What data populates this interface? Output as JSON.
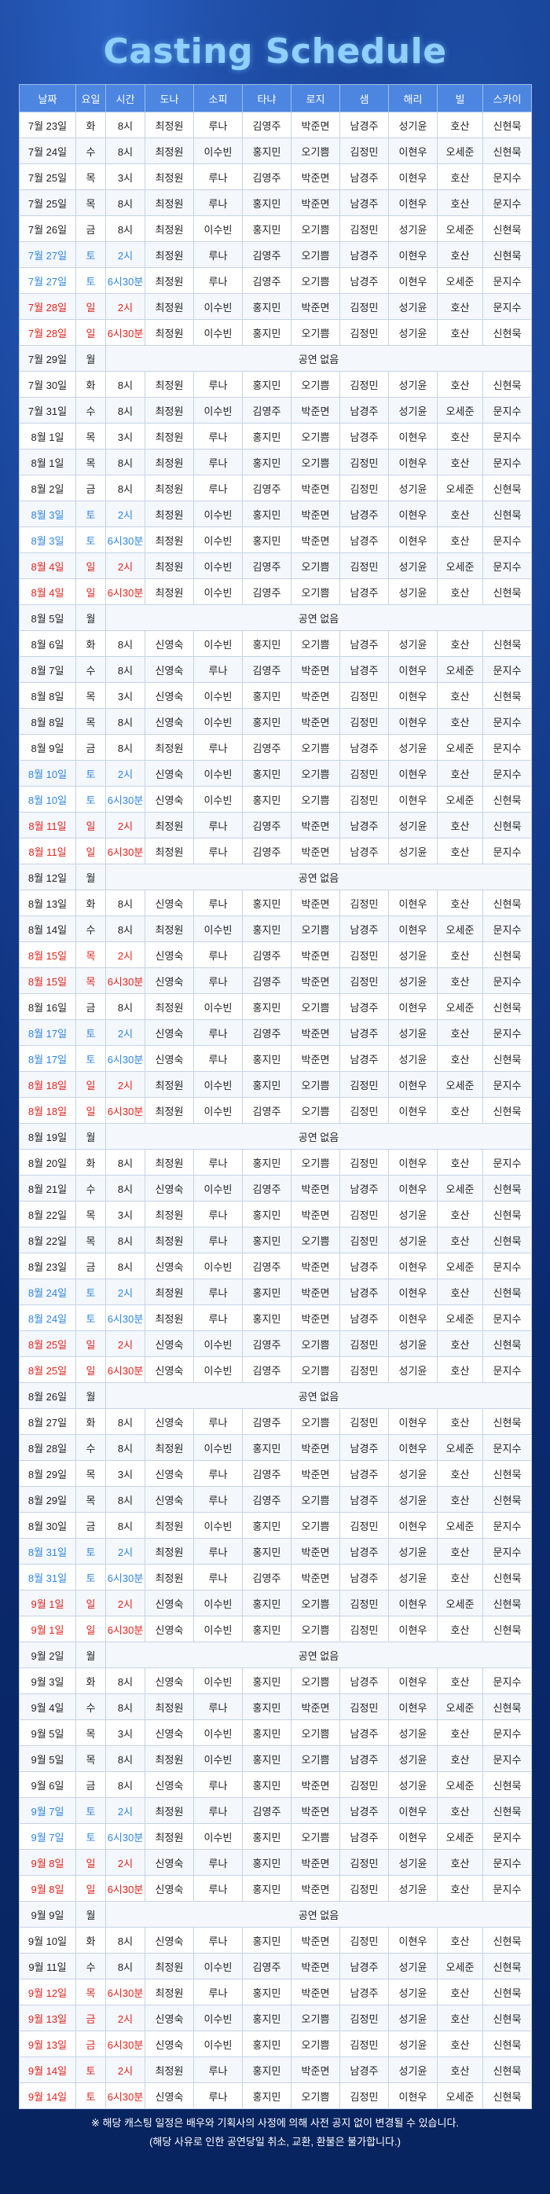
{
  "title": "Casting Schedule",
  "headers": [
    "날짜",
    "요일",
    "시간",
    "도나",
    "소피",
    "타냐",
    "로지",
    "샘",
    "해리",
    "빌",
    "스카이"
  ],
  "rows": [
    [
      "7월 23일",
      "화",
      "8시",
      "최정원",
      "루나",
      "김영주",
      "박준면",
      "남경주",
      "성기윤",
      "호산",
      "신현묵"
    ],
    [
      "7월 24일",
      "수",
      "8시",
      "최정원",
      "이수빈",
      "홍지민",
      "오기쁨",
      "김정민",
      "이현우",
      "오세준",
      "신현묵"
    ],
    [
      "7월 25일",
      "목",
      "3시",
      "최정원",
      "루나",
      "김영주",
      "박준면",
      "남경주",
      "이현우",
      "호산",
      "문지수"
    ],
    [
      "7월 25일",
      "목",
      "8시",
      "최정원",
      "루나",
      "홍지민",
      "박준면",
      "남경주",
      "이현우",
      "호산",
      "문지수"
    ],
    [
      "7월 26일",
      "금",
      "8시",
      "최정원",
      "이수빈",
      "홍지민",
      "오기쁨",
      "김정민",
      "성기윤",
      "오세준",
      "신현묵"
    ],
    [
      "7월 27일",
      "토",
      "2시",
      "최정원",
      "루나",
      "김영주",
      "오기쁨",
      "남경주",
      "이현우",
      "호산",
      "신현묵"
    ],
    [
      "7월 27일",
      "토",
      "6시30분",
      "최정원",
      "루나",
      "김영주",
      "오기쁨",
      "남경주",
      "이현우",
      "오세준",
      "문지수"
    ],
    [
      "7월 28일",
      "일",
      "2시",
      "최정원",
      "이수빈",
      "홍지민",
      "박준면",
      "김정민",
      "성기윤",
      "호산",
      "문지수"
    ],
    [
      "7월 28일",
      "일",
      "6시30분",
      "최정원",
      "이수빈",
      "홍지민",
      "오기쁨",
      "김정민",
      "성기윤",
      "호산",
      "신현묵"
    ],
    [
      "7월 29일",
      "월",
      "공연 없음"
    ],
    [
      "7월 30일",
      "화",
      "8시",
      "최정원",
      "루나",
      "홍지민",
      "오기쁨",
      "김정민",
      "성기윤",
      "호산",
      "신현묵"
    ],
    [
      "7월 31일",
      "수",
      "8시",
      "최정원",
      "이수빈",
      "김영주",
      "박준면",
      "남경주",
      "성기윤",
      "오세준",
      "문지수"
    ],
    [
      "8월 1일",
      "목",
      "3시",
      "최정원",
      "루나",
      "홍지민",
      "오기쁨",
      "남경주",
      "이현우",
      "호산",
      "문지수"
    ],
    [
      "8월 1일",
      "목",
      "8시",
      "최정원",
      "루나",
      "홍지민",
      "오기쁨",
      "김정민",
      "이현우",
      "호산",
      "문지수"
    ],
    [
      "8월 2일",
      "금",
      "8시",
      "최정원",
      "루나",
      "김영주",
      "박준면",
      "김정민",
      "성기윤",
      "오세준",
      "신현묵"
    ],
    [
      "8월 3일",
      "토",
      "2시",
      "최정원",
      "이수빈",
      "홍지민",
      "박준면",
      "남경주",
      "이현우",
      "호산",
      "신현묵"
    ],
    [
      "8월 3일",
      "토",
      "6시30분",
      "최정원",
      "이수빈",
      "홍지민",
      "박준면",
      "남경주",
      "이현우",
      "호산",
      "문지수"
    ],
    [
      "8월 4일",
      "일",
      "2시",
      "최정원",
      "이수빈",
      "김영주",
      "오기쁨",
      "김정민",
      "성기윤",
      "오세준",
      "문지수"
    ],
    [
      "8월 4일",
      "일",
      "6시30분",
      "최정원",
      "이수빈",
      "김영주",
      "오기쁨",
      "남경주",
      "성기윤",
      "호산",
      "신현묵"
    ],
    [
      "8월 5일",
      "월",
      "공연 없음"
    ],
    [
      "8월 6일",
      "화",
      "8시",
      "신영숙",
      "이수빈",
      "홍지민",
      "오기쁨",
      "남경주",
      "성기윤",
      "호산",
      "신현묵"
    ],
    [
      "8월 7일",
      "수",
      "8시",
      "신영숙",
      "루나",
      "김영주",
      "박준면",
      "남경주",
      "이현우",
      "오세준",
      "문지수"
    ],
    [
      "8월 8일",
      "목",
      "3시",
      "신영숙",
      "이수빈",
      "홍지민",
      "박준면",
      "김정민",
      "이현우",
      "호산",
      "신현묵"
    ],
    [
      "8월 8일",
      "목",
      "8시",
      "신영숙",
      "이수빈",
      "홍지민",
      "박준면",
      "김정민",
      "이현우",
      "호산",
      "문지수"
    ],
    [
      "8월 9일",
      "금",
      "8시",
      "최정원",
      "루나",
      "김영주",
      "오기쁨",
      "남경주",
      "성기윤",
      "오세준",
      "문지수"
    ],
    [
      "8월 10일",
      "토",
      "2시",
      "신영숙",
      "이수빈",
      "홍지민",
      "오기쁨",
      "김정민",
      "이현우",
      "호산",
      "문지수"
    ],
    [
      "8월 10일",
      "토",
      "6시30분",
      "신영숙",
      "이수빈",
      "홍지민",
      "오기쁨",
      "김정민",
      "이현우",
      "오세준",
      "신현묵"
    ],
    [
      "8월 11일",
      "일",
      "2시",
      "최정원",
      "루나",
      "김영주",
      "박준면",
      "남경주",
      "성기윤",
      "호산",
      "신현묵"
    ],
    [
      "8월 11일",
      "일",
      "6시30분",
      "최정원",
      "루나",
      "김영주",
      "박준면",
      "남경주",
      "성기윤",
      "호산",
      "문지수"
    ],
    [
      "8월 12일",
      "월",
      "공연 없음"
    ],
    [
      "8월 13일",
      "화",
      "8시",
      "신영숙",
      "루나",
      "홍지민",
      "박준면",
      "김정민",
      "이현우",
      "호산",
      "신현묵"
    ],
    [
      "8월 14일",
      "수",
      "8시",
      "최정원",
      "이수빈",
      "홍지민",
      "오기쁨",
      "남경주",
      "이현우",
      "오세준",
      "문지수"
    ],
    [
      "8월 15일",
      "목",
      "2시",
      "신영숙",
      "루나",
      "김영주",
      "박준면",
      "김정민",
      "성기윤",
      "호산",
      "신현묵"
    ],
    [
      "8월 15일",
      "목",
      "6시30분",
      "신영숙",
      "루나",
      "김영주",
      "박준면",
      "김정민",
      "성기윤",
      "호산",
      "문지수"
    ],
    [
      "8월 16일",
      "금",
      "8시",
      "최정원",
      "이수빈",
      "홍지민",
      "오기쁨",
      "남경주",
      "이현우",
      "오세준",
      "신현묵"
    ],
    [
      "8월 17일",
      "토",
      "2시",
      "신영숙",
      "루나",
      "김영주",
      "박준면",
      "남경주",
      "성기윤",
      "호산",
      "문지수"
    ],
    [
      "8월 17일",
      "토",
      "6시30분",
      "신영숙",
      "루나",
      "홍지민",
      "박준면",
      "남경주",
      "성기윤",
      "호산",
      "신현묵"
    ],
    [
      "8월 18일",
      "일",
      "2시",
      "최정원",
      "이수빈",
      "홍지민",
      "오기쁨",
      "김정민",
      "이현우",
      "오세준",
      "문지수"
    ],
    [
      "8월 18일",
      "일",
      "6시30분",
      "최정원",
      "이수빈",
      "김영주",
      "오기쁨",
      "김정민",
      "이현우",
      "호산",
      "신현묵"
    ],
    [
      "8월 19일",
      "월",
      "공연 없음"
    ],
    [
      "8월 20일",
      "화",
      "8시",
      "최정원",
      "루나",
      "홍지민",
      "오기쁨",
      "김정민",
      "이현우",
      "호산",
      "문지수"
    ],
    [
      "8월 21일",
      "수",
      "8시",
      "신영숙",
      "이수빈",
      "김영주",
      "박준면",
      "남경주",
      "이현우",
      "오세준",
      "신현묵"
    ],
    [
      "8월 22일",
      "목",
      "3시",
      "최정원",
      "루나",
      "홍지민",
      "박준면",
      "김정민",
      "성기윤",
      "호산",
      "신현묵"
    ],
    [
      "8월 22일",
      "목",
      "8시",
      "최정원",
      "루나",
      "홍지민",
      "오기쁨",
      "김정민",
      "성기윤",
      "호산",
      "신현묵"
    ],
    [
      "8월 23일",
      "금",
      "8시",
      "신영숙",
      "이수빈",
      "김영주",
      "박준면",
      "남경주",
      "이현우",
      "오세준",
      "문지수"
    ],
    [
      "8월 24일",
      "토",
      "2시",
      "최정원",
      "루나",
      "홍지민",
      "박준면",
      "남경주",
      "이현우",
      "호산",
      "신현묵"
    ],
    [
      "8월 24일",
      "토",
      "6시30분",
      "최정원",
      "루나",
      "홍지민",
      "박준면",
      "남경주",
      "이현우",
      "오세준",
      "문지수"
    ],
    [
      "8월 25일",
      "일",
      "2시",
      "신영숙",
      "이수빈",
      "김영주",
      "오기쁨",
      "김정민",
      "성기윤",
      "호산",
      "신현묵"
    ],
    [
      "8월 25일",
      "일",
      "6시30분",
      "신영숙",
      "이수빈",
      "김영주",
      "오기쁨",
      "김정민",
      "성기윤",
      "호산",
      "문지수"
    ],
    [
      "8월 26일",
      "월",
      "공연 없음"
    ],
    [
      "8월 27일",
      "화",
      "8시",
      "신영숙",
      "루나",
      "김영주",
      "오기쁨",
      "김정민",
      "이현우",
      "호산",
      "신현묵"
    ],
    [
      "8월 28일",
      "수",
      "8시",
      "최정원",
      "이수빈",
      "홍지민",
      "박준면",
      "남경주",
      "이현우",
      "오세준",
      "문지수"
    ],
    [
      "8월 29일",
      "목",
      "3시",
      "신영숙",
      "루나",
      "김영주",
      "박준면",
      "남경주",
      "성기윤",
      "호산",
      "신현묵"
    ],
    [
      "8월 29일",
      "목",
      "8시",
      "신영숙",
      "루나",
      "김영주",
      "오기쁨",
      "남경주",
      "성기윤",
      "호산",
      "신현묵"
    ],
    [
      "8월 30일",
      "금",
      "8시",
      "최정원",
      "이수빈",
      "홍지민",
      "오기쁨",
      "김정민",
      "이현우",
      "오세준",
      "문지수"
    ],
    [
      "8월 31일",
      "토",
      "2시",
      "최정원",
      "루나",
      "홍지민",
      "박준면",
      "남경주",
      "성기윤",
      "호산",
      "문지수"
    ],
    [
      "8월 31일",
      "토",
      "6시30분",
      "최정원",
      "루나",
      "김영주",
      "박준면",
      "남경주",
      "성기윤",
      "호산",
      "신현묵"
    ],
    [
      "9월 1일",
      "일",
      "2시",
      "신영숙",
      "이수빈",
      "홍지민",
      "오기쁨",
      "김정민",
      "이현우",
      "오세준",
      "신현묵"
    ],
    [
      "9월 1일",
      "일",
      "6시30분",
      "신영숙",
      "이수빈",
      "홍지민",
      "오기쁨",
      "김정민",
      "이현우",
      "호산",
      "신현묵"
    ],
    [
      "9월 2일",
      "월",
      "공연 없음"
    ],
    [
      "9월 3일",
      "화",
      "8시",
      "신영숙",
      "이수빈",
      "홍지민",
      "오기쁨",
      "남경주",
      "이현우",
      "호산",
      "문지수"
    ],
    [
      "9월 4일",
      "수",
      "8시",
      "최정원",
      "루나",
      "홍지민",
      "박준면",
      "김정민",
      "이현우",
      "오세준",
      "신현묵"
    ],
    [
      "9월 5일",
      "목",
      "3시",
      "신영숙",
      "이수빈",
      "홍지민",
      "오기쁨",
      "남경주",
      "성기윤",
      "호산",
      "문지수"
    ],
    [
      "9월 5일",
      "목",
      "8시",
      "최정원",
      "이수빈",
      "홍지민",
      "오기쁨",
      "남경주",
      "성기윤",
      "호산",
      "문지수"
    ],
    [
      "9월 6일",
      "금",
      "8시",
      "신영숙",
      "루나",
      "홍지민",
      "박준면",
      "김정민",
      "성기윤",
      "오세준",
      "신현묵"
    ],
    [
      "9월 7일",
      "토",
      "2시",
      "최정원",
      "루나",
      "김영주",
      "박준면",
      "남경주",
      "이현우",
      "호산",
      "신현묵"
    ],
    [
      "9월 7일",
      "토",
      "6시30분",
      "최정원",
      "이수빈",
      "홍지민",
      "오기쁨",
      "남경주",
      "이현우",
      "오세준",
      "문지수"
    ],
    [
      "9월 8일",
      "일",
      "2시",
      "신영숙",
      "루나",
      "홍지민",
      "박준면",
      "김정민",
      "성기윤",
      "호산",
      "문지수"
    ],
    [
      "9월 8일",
      "일",
      "6시30분",
      "신영숙",
      "루나",
      "홍지민",
      "박준면",
      "김정민",
      "성기윤",
      "호산",
      "문지수"
    ],
    [
      "9월 9일",
      "월",
      "공연 없음"
    ],
    [
      "9월 10일",
      "화",
      "8시",
      "신영숙",
      "루나",
      "홍지민",
      "박준면",
      "김정민",
      "이현우",
      "호산",
      "신현묵"
    ],
    [
      "9월 11일",
      "수",
      "8시",
      "최정원",
      "이수빈",
      "김영주",
      "박준면",
      "남경주",
      "성기윤",
      "오세준",
      "신현묵"
    ],
    [
      "9월 12일",
      "목",
      "6시30분",
      "최정원",
      "루나",
      "홍지민",
      "박준면",
      "남경주",
      "성기윤",
      "호산",
      "신현묵"
    ],
    [
      "9월 13일",
      "금",
      "2시",
      "신영숙",
      "이수빈",
      "홍지민",
      "오기쁨",
      "김정민",
      "성기윤",
      "호산",
      "신현묵"
    ],
    [
      "9월 13일",
      "금",
      "6시30분",
      "신영숙",
      "이수빈",
      "홍지민",
      "오기쁨",
      "김정민",
      "성기윤",
      "호산",
      "신현묵"
    ],
    [
      "9월 14일",
      "토",
      "2시",
      "최정원",
      "루나",
      "홍지민",
      "박준면",
      "남경주",
      "성기윤",
      "호산",
      "신현묵"
    ],
    [
      "9월 14일",
      "토",
      "6시30분",
      "신영숙",
      "루나",
      "홍지민",
      "오기쁨",
      "김정민",
      "이현우",
      "오세준",
      "신현묵"
    ]
  ],
  "red_rows": [
    7,
    8,
    17,
    18,
    27,
    28,
    32,
    33,
    37,
    38,
    47,
    48,
    57,
    58,
    67,
    68,
    72,
    73,
    74,
    75,
    76
  ],
  "blue_rows": [
    5,
    6,
    15,
    16,
    25,
    26,
    35,
    36,
    45,
    46,
    55,
    56,
    65,
    66
  ],
  "notes": [
    "※ 해당 캐스팅 일정은 배우와 기획사의 사정에 의해 사전 공지 없이 변경될 수 있습니다.",
    "(해당 사유로 인한 공연당일 취소, 교환, 환불은 불가합니다.)"
  ]
}
